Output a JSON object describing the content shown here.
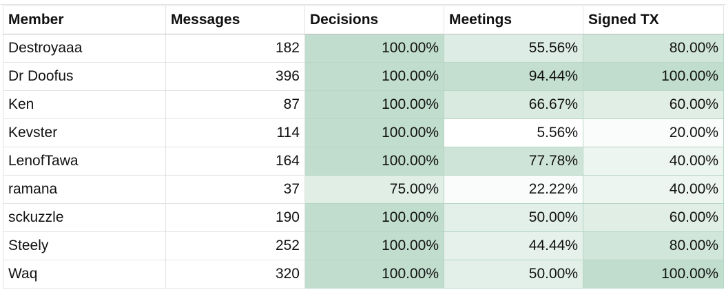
{
  "sheet": {
    "columns": [
      "Member",
      "Messages",
      "Decisions",
      "Meetings",
      "Signed TX"
    ],
    "rows": [
      {
        "member": "Destroyaaa",
        "messages": "182",
        "decisions": "100.00%",
        "meetings": "55.56%",
        "signed_tx": "80.00%",
        "decisions_level": 1.0,
        "meetings_level": 0.55,
        "signed_tx_level": 0.75
      },
      {
        "member": "Dr Doofus",
        "messages": "396",
        "decisions": "100.00%",
        "meetings": "94.44%",
        "signed_tx": "100.00%",
        "decisions_level": 1.0,
        "meetings_level": 0.95,
        "signed_tx_level": 1.0
      },
      {
        "member": "Ken",
        "messages": "87",
        "decisions": "100.00%",
        "meetings": "66.67%",
        "signed_tx": "60.00%",
        "decisions_level": 1.0,
        "meetings_level": 0.62,
        "signed_tx_level": 0.5
      },
      {
        "member": "Kevster",
        "messages": "114",
        "decisions": "100.00%",
        "meetings": "5.56%",
        "signed_tx": "20.00%",
        "decisions_level": 1.0,
        "meetings_level": 0.0,
        "signed_tx_level": 0.1
      },
      {
        "member": "LenofTawa",
        "messages": "164",
        "decisions": "100.00%",
        "meetings": "77.78%",
        "signed_tx": "40.00%",
        "decisions_level": 1.0,
        "meetings_level": 0.78,
        "signed_tx_level": 0.3
      },
      {
        "member": "ramana",
        "messages": "37",
        "decisions": "75.00%",
        "meetings": "22.22%",
        "signed_tx": "40.00%",
        "decisions_level": 0.5,
        "meetings_level": 0.1,
        "signed_tx_level": 0.3
      },
      {
        "member": "sckuzzle",
        "messages": "190",
        "decisions": "100.00%",
        "meetings": "50.00%",
        "signed_tx": "60.00%",
        "decisions_level": 1.0,
        "meetings_level": 0.45,
        "signed_tx_level": 0.5
      },
      {
        "member": "Steely",
        "messages": "252",
        "decisions": "100.00%",
        "meetings": "44.44%",
        "signed_tx": "80.00%",
        "decisions_level": 1.0,
        "meetings_level": 0.4,
        "signed_tx_level": 0.75
      },
      {
        "member": "Waq",
        "messages": "320",
        "decisions": "100.00%",
        "meetings": "50.00%",
        "signed_tx": "100.00%",
        "decisions_level": 1.0,
        "meetings_level": 0.45,
        "signed_tx_level": 1.0
      }
    ]
  },
  "colors": {
    "scale_max": "#c1ddcd",
    "scale_min": "#ffffff",
    "grid_line": "#e2e3e3",
    "header_line": "#b9bcbf"
  }
}
